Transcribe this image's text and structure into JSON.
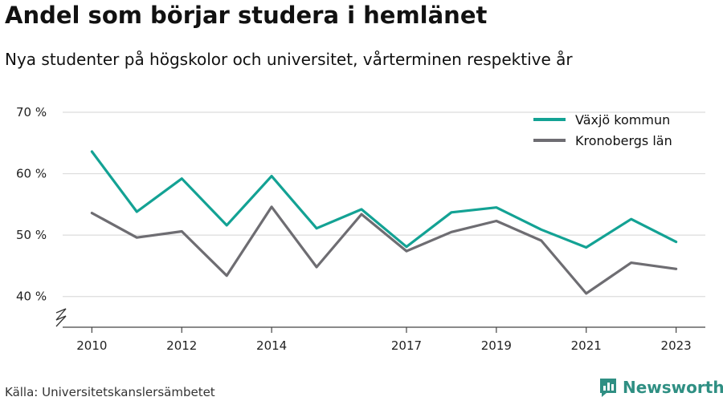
{
  "title": "Andel som börjar studera i hemlänet",
  "subtitle": "Nya studenter på högskolor och universitet, vårterminen respektive år",
  "source": "Källa: Universitetskanslersämbetet",
  "brand": {
    "name": "Newsworthy",
    "logo_icon": "bar-chart-logo-icon",
    "color": "#2f8f83"
  },
  "chart_data": {
    "type": "line",
    "x": [
      2010,
      2011,
      2012,
      2013,
      2014,
      2015,
      2016,
      2017,
      2018,
      2019,
      2020,
      2021,
      2022,
      2023
    ],
    "x_tick_values": [
      2010,
      2012,
      2014,
      2017,
      2019,
      2021,
      2023
    ],
    "x_tick_labels": [
      "2010",
      "2012",
      "2014",
      "2017",
      "2019",
      "2021",
      "2023"
    ],
    "y_tick_values": [
      40,
      50,
      60,
      70
    ],
    "y_tick_labels": [
      "40 %",
      "50 %",
      "60 %",
      "70 %"
    ],
    "ylim": [
      35,
      70
    ],
    "y_axis_break": true,
    "grid": true,
    "legend_position": "top-right",
    "series": [
      {
        "name": "Växjö kommun",
        "color": "#13a294",
        "values": [
          63.6,
          53.8,
          59.2,
          51.6,
          59.6,
          51.1,
          54.2,
          48.1,
          53.7,
          54.5,
          50.9,
          48.0,
          52.6,
          48.9
        ]
      },
      {
        "name": "Kronobergs län",
        "color": "#6e6d72",
        "values": [
          53.6,
          49.6,
          50.6,
          43.4,
          54.6,
          44.8,
          53.4,
          47.4,
          50.5,
          52.3,
          49.1,
          40.5,
          45.5,
          44.5
        ]
      }
    ]
  }
}
